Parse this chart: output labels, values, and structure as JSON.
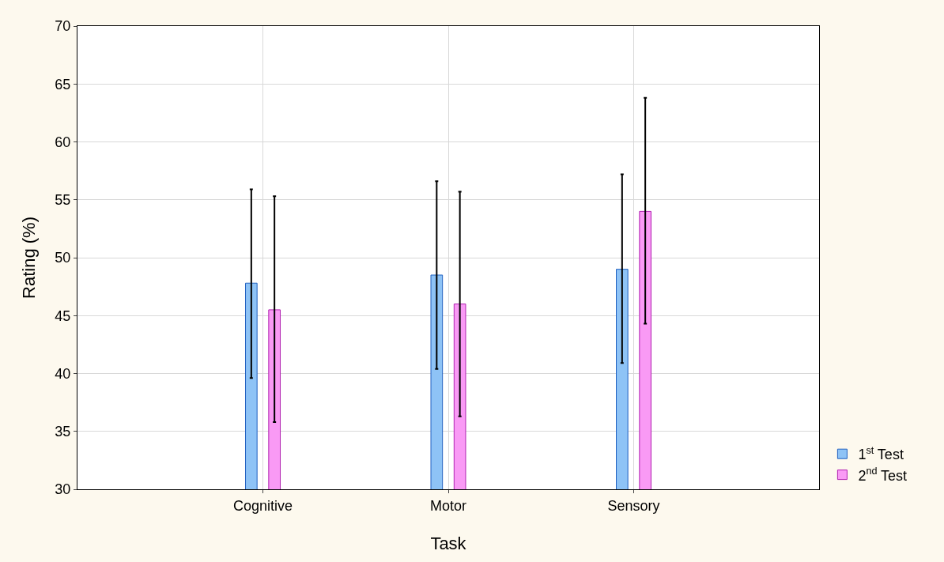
{
  "chart_data": {
    "type": "bar",
    "xlabel": "Task",
    "ylabel": "Rating (%)",
    "categories": [
      "Cognitive",
      "Motor",
      "Sensory"
    ],
    "series": [
      {
        "name": "1$^{st}$ Test",
        "color": "#8ec3f6",
        "values": [
          47.8,
          48.5,
          49.0
        ],
        "errors": [
          [
            39.6,
            55.9
          ],
          [
            40.4,
            56.6
          ],
          [
            40.9,
            57.2
          ]
        ]
      },
      {
        "name": "2$^{nd}$ Test",
        "color": "#f99af5",
        "values": [
          45.5,
          46.0,
          54.0
        ],
        "errors": [
          [
            35.8,
            55.3
          ],
          [
            36.3,
            55.7
          ],
          [
            44.3,
            63.8
          ]
        ]
      }
    ],
    "ylim": [
      30,
      70
    ],
    "yticks": [
      30,
      35,
      40,
      45,
      50,
      55,
      60,
      65,
      70
    ],
    "grid": true,
    "legend": "bottom right"
  }
}
